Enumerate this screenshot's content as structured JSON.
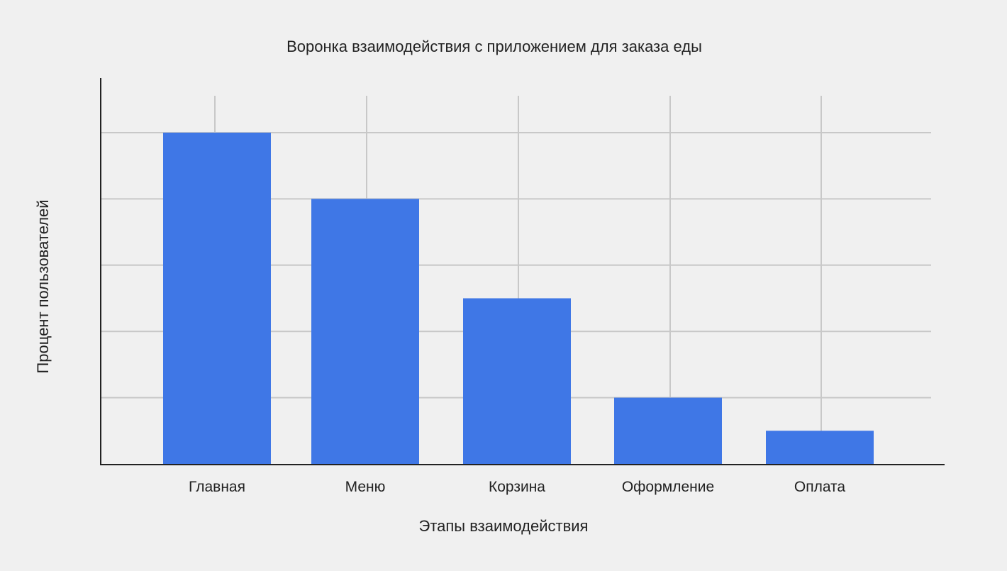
{
  "chart_data": {
    "type": "bar",
    "title": "Воронка взаимодействия с приложением для заказа еды",
    "xlabel": "Этапы взаимодействия",
    "ylabel": "Процент пользователей",
    "categories": [
      "Главная",
      "Меню",
      "Корзина",
      "Оформление",
      "Оплата"
    ],
    "values": [
      100,
      80,
      50,
      20,
      10
    ],
    "ylim": [
      0,
      116
    ],
    "yticks": [
      20,
      40,
      60,
      80,
      100
    ],
    "grid": true,
    "bar_color": "#3f77e6",
    "grid_color": "#c8c8c8",
    "axis_color": "#222222",
    "background": "#f0f0f0"
  }
}
